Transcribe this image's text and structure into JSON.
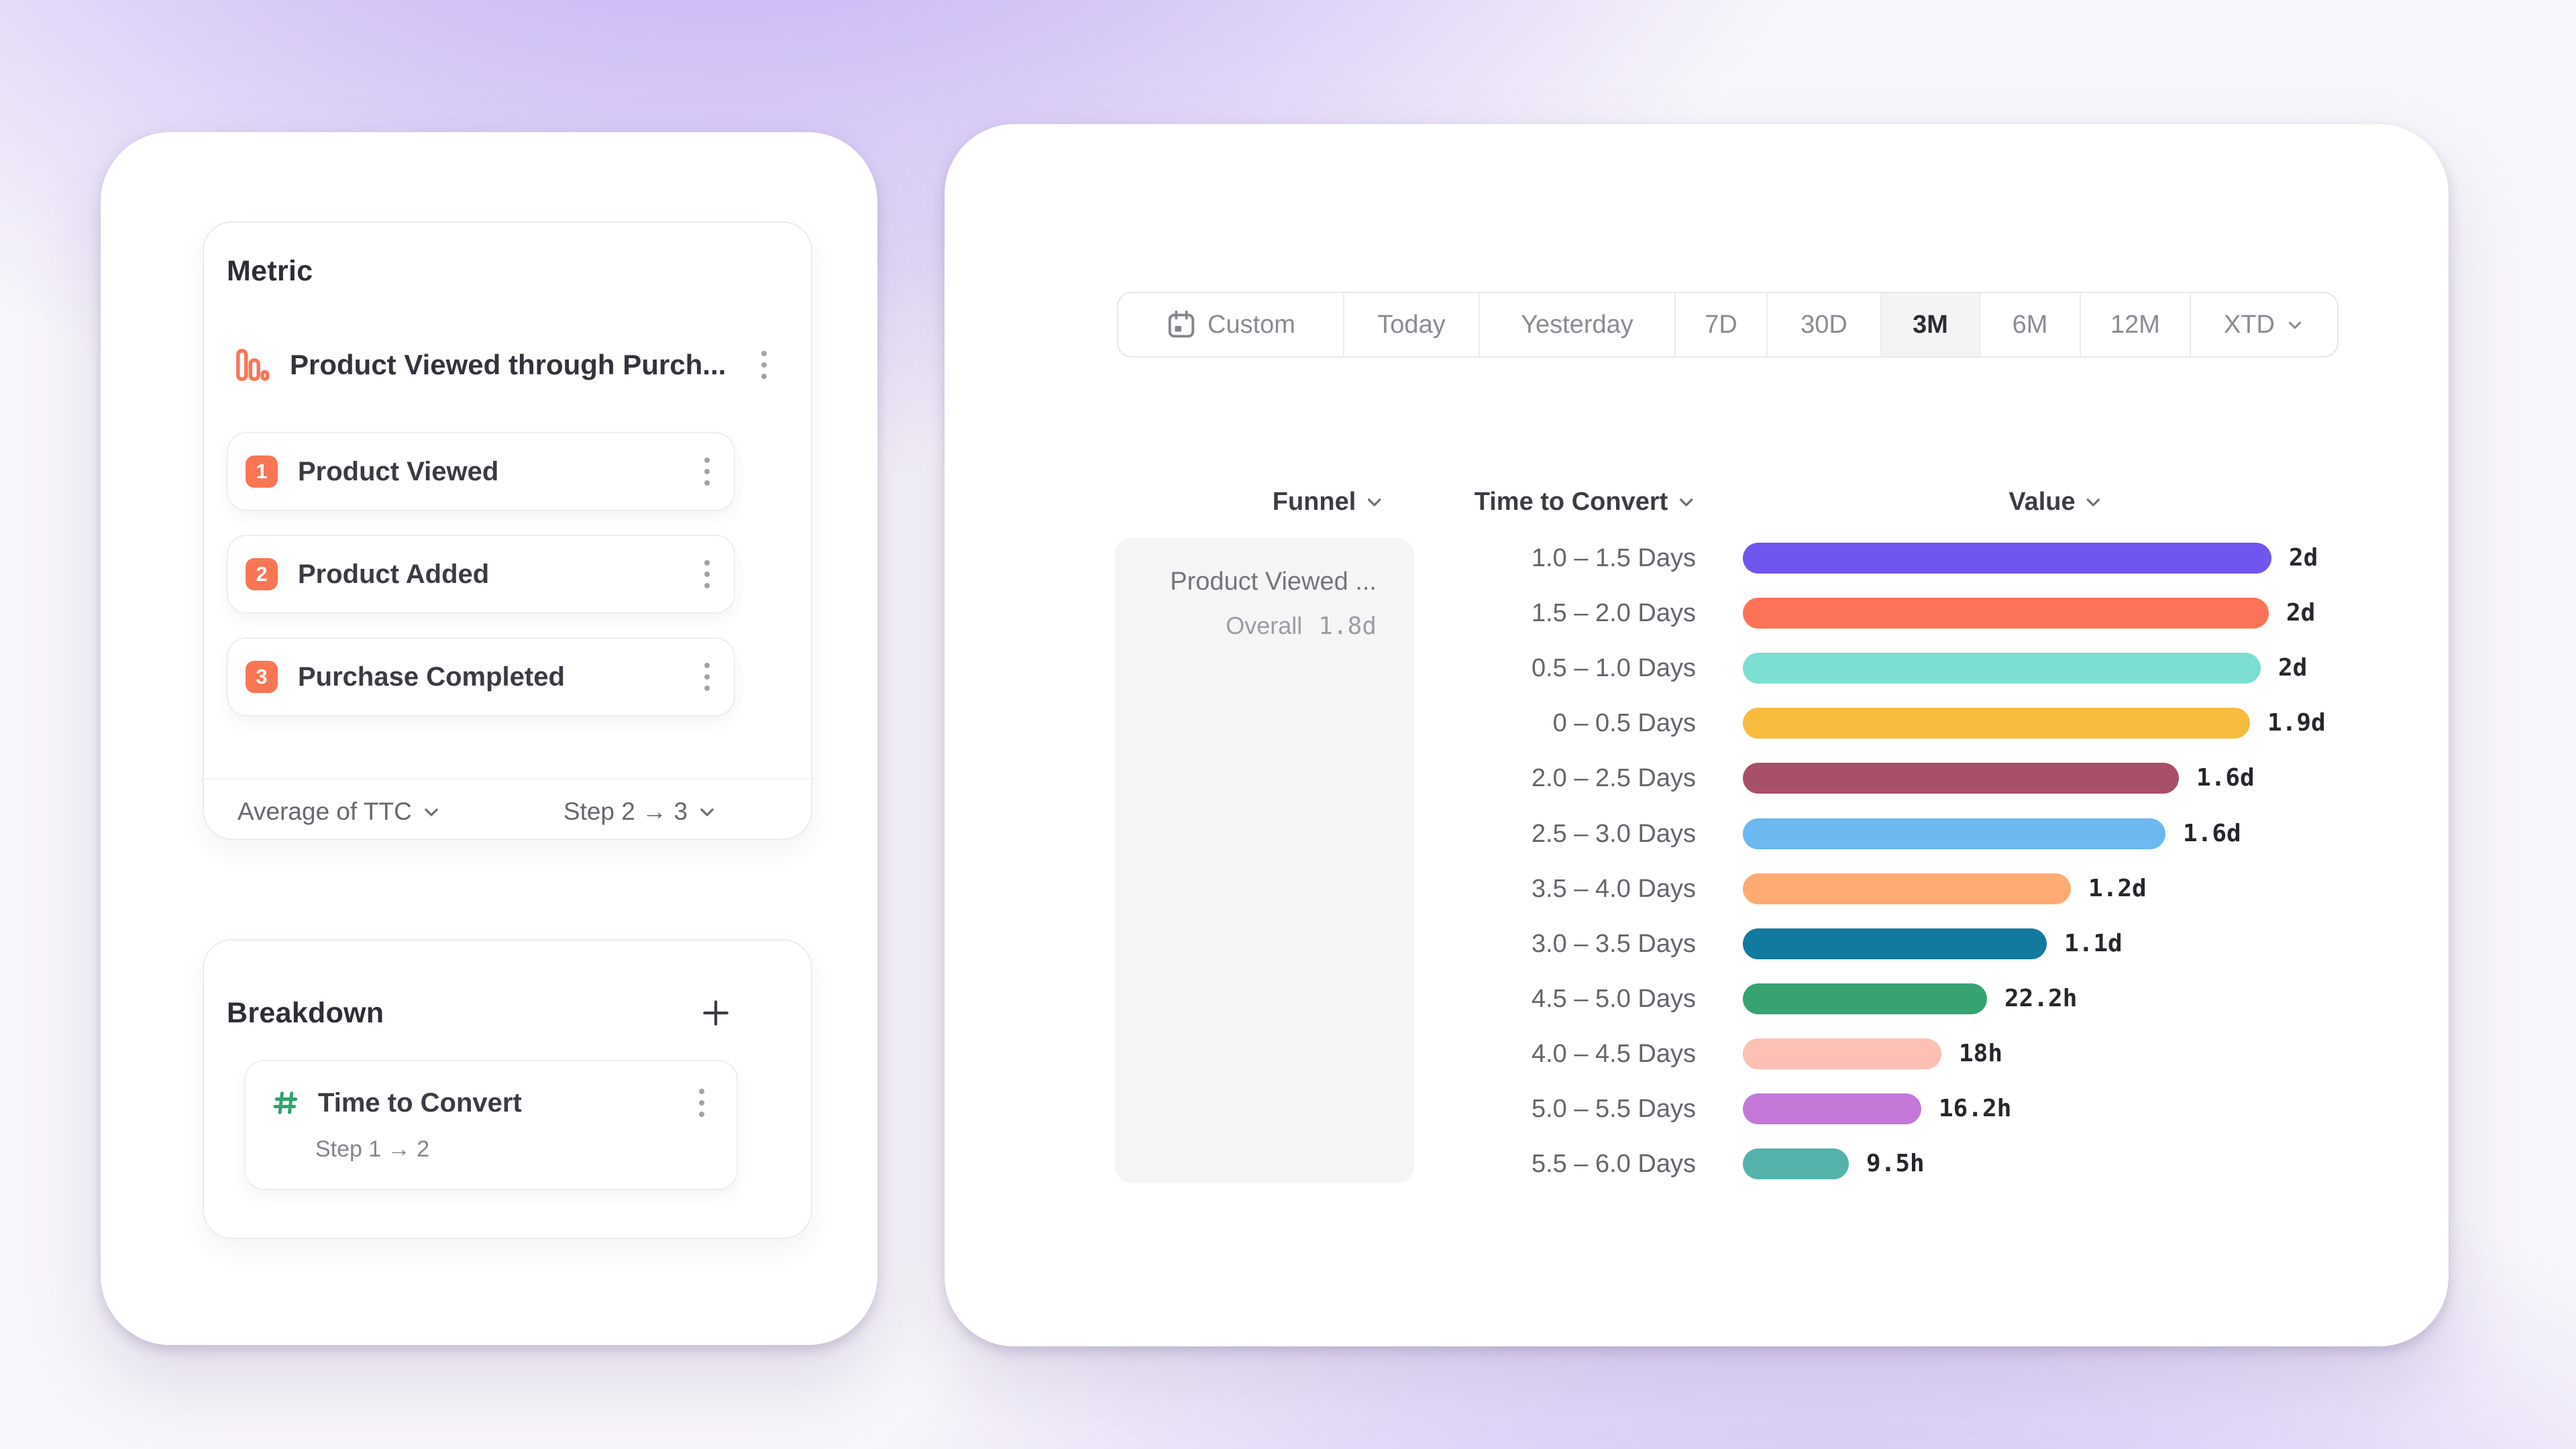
{
  "theme": {
    "accent_coral": "#f97654",
    "accent_green": "#2ea36d",
    "selected_tab_bg": "#f4f4f5",
    "funnel_cell_bg": "#f5f5f6",
    "page_glow": "#a98bef"
  },
  "metric_panel": {
    "title": "Metric",
    "funnel": {
      "icon": "bar-chart-icon",
      "title": "Product Viewed through Purch...",
      "menu_icon": "kebab-menu-icon",
      "steps": [
        {
          "number": "1",
          "label": "Product Viewed"
        },
        {
          "number": "2",
          "label": "Product Added"
        },
        {
          "number": "3",
          "label": "Purchase Completed"
        }
      ]
    },
    "footer": {
      "aggregation": "Average of TTC",
      "step_range": "Step 2 → 3"
    }
  },
  "breakdown_panel": {
    "title": "Breakdown",
    "add_icon": "plus-icon",
    "item": {
      "icon": "hash-icon",
      "label": "Time to Convert",
      "sublabel": "Step 1 → 2"
    }
  },
  "date_picker": {
    "selected": "3M",
    "options": [
      {
        "label": "Custom",
        "icon": "calendar-icon"
      },
      {
        "label": "Today"
      },
      {
        "label": "Yesterday"
      },
      {
        "label": "7D"
      },
      {
        "label": "30D"
      },
      {
        "label": "3M",
        "selected": true
      },
      {
        "label": "6M"
      },
      {
        "label": "12M"
      },
      {
        "label": "XTD",
        "chevron": true
      }
    ]
  },
  "table": {
    "columns": [
      {
        "label": "Funnel"
      },
      {
        "label": "Time to Convert"
      },
      {
        "label": "Value"
      }
    ],
    "funnel_cell": {
      "name": "Product Viewed ...",
      "overall_label": "Overall",
      "overall_value": "1.8d"
    }
  },
  "chart_data": {
    "type": "bar",
    "orientation": "horizontal",
    "categories": [
      "1.0 – 1.5 Days",
      "1.5 – 2.0 Days",
      "0.5 – 1.0 Days",
      "0 – 0.5 Days",
      "2.0 – 2.5 Days",
      "2.5 – 3.0 Days",
      "3.5 – 4.0 Days",
      "3.0 – 3.5 Days",
      "4.5 – 5.0 Days",
      "4.0 – 4.5 Days",
      "5.0 – 5.5 Days",
      "5.5 – 6.0 Days"
    ],
    "values": [
      "2d",
      "2d",
      "2d",
      "1.9d",
      "1.6d",
      "1.6d",
      "1.2d",
      "1.1d",
      "22.2h",
      "18h",
      "16.2h",
      "9.5h"
    ],
    "values_in_days": [
      2.0,
      1.99,
      1.96,
      1.92,
      1.65,
      1.6,
      1.24,
      1.15,
      0.925,
      0.75,
      0.675,
      0.4
    ],
    "bar_colors": [
      "#7155ef",
      "#fc7357",
      "#7cdfd2",
      "#f7bb3e",
      "#a85068",
      "#6cb8f0",
      "#fdab72",
      "#117a9e",
      "#36a371",
      "#fcc0b4",
      "#c378d8",
      "#54b2ab"
    ],
    "xlim": [
      0,
      2
    ],
    "grid": false,
    "legend": false
  }
}
